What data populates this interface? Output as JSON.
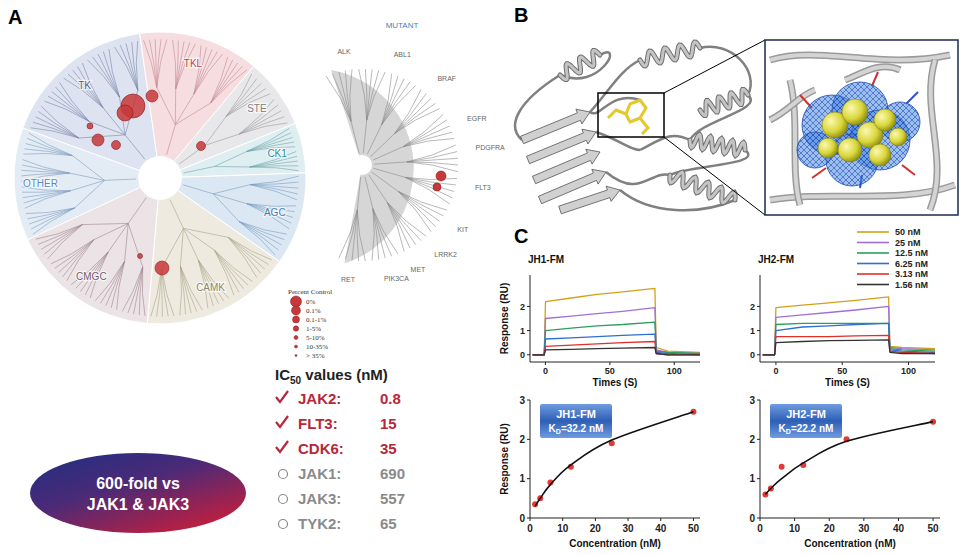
{
  "panels": {
    "a": {
      "letter": "A",
      "kinome_groups": [
        "TK",
        "TKL",
        "STE",
        "CK1",
        "AGC",
        "CAMK",
        "CMGC",
        "OTHER"
      ],
      "mutant_title": "MUTANT",
      "mutant_labels": [
        "ALK",
        "ABL1",
        "BRAF",
        "EGFR",
        "PDGFRA",
        "FLT3",
        "KIT",
        "LRRK2",
        "MET",
        "PIK3CA",
        "RET"
      ],
      "legend_title": "Percent Control",
      "legend_labels": [
        "0%",
        "0.1%",
        "0.1-1%",
        "1-5%",
        "5-10%",
        "10-35%",
        "> 35%"
      ],
      "ic50": {
        "title": "IC",
        "title_subscript": "50",
        "title_rest": " values (nM)",
        "separator": ":",
        "rows": [
          {
            "kinase": "JAK2",
            "value": 0.8,
            "selected": true
          },
          {
            "kinase": "FLT3",
            "value": 15,
            "selected": true
          },
          {
            "kinase": "CDK6",
            "value": 35,
            "selected": true
          },
          {
            "kinase": "JAK1",
            "value": 690,
            "selected": false
          },
          {
            "kinase": "JAK3",
            "value": 557,
            "selected": false
          },
          {
            "kinase": "TYK2",
            "value": 65,
            "selected": false
          }
        ]
      },
      "selectivity": [
        "600-fold vs",
        "JAK1 & JAK3"
      ]
    },
    "b": {
      "letter": "B"
    },
    "c": {
      "letter": "C"
    }
  },
  "chart_data": [
    {
      "type": "line",
      "title": "JH1-FM",
      "x_label": "Times (S)",
      "y_label": "Response (RU)",
      "x": [
        -10,
        -1,
        0,
        20,
        40,
        60,
        85,
        86,
        95,
        120
      ],
      "series": [
        {
          "color": "#d4a017",
          "values": [
            0,
            0,
            2.2,
            2.35,
            2.5,
            2.6,
            2.75,
            0.3,
            0.15,
            0.1
          ]
        },
        {
          "color": "#a070d8",
          "values": [
            0,
            0,
            1.5,
            1.6,
            1.7,
            1.8,
            1.95,
            0.2,
            0.1,
            0.05
          ]
        },
        {
          "color": "#2ca05a",
          "values": [
            0,
            0,
            1.0,
            1.1,
            1.2,
            1.25,
            1.35,
            0.15,
            0.1,
            0.05
          ]
        },
        {
          "color": "#2d6fd2",
          "values": [
            0,
            0,
            0.65,
            0.7,
            0.75,
            0.8,
            0.85,
            0.1,
            0.05,
            0
          ]
        },
        {
          "color": "#e0302a",
          "values": [
            0,
            0,
            0.35,
            0.4,
            0.45,
            0.5,
            0.55,
            0.05,
            0,
            0
          ]
        },
        {
          "color": "#333333",
          "values": [
            0,
            0,
            0.2,
            0.22,
            0.25,
            0.27,
            0.3,
            0.05,
            0,
            0
          ]
        }
      ],
      "xlim": [
        -12,
        120
      ],
      "xticks": [
        0,
        50,
        100
      ],
      "ylim": [
        -0.3,
        3.3
      ],
      "yticks": [
        0,
        1,
        2
      ]
    },
    {
      "type": "line",
      "title": "JH2-FM",
      "x_label": "Times (S)",
      "x": [
        -10,
        -1,
        0,
        20,
        40,
        60,
        85,
        86,
        95,
        120
      ],
      "series": [
        {
          "name": "50 nM",
          "color": "#d4a017",
          "values": [
            0,
            0,
            1.95,
            2.05,
            2.15,
            2.25,
            2.4,
            0.35,
            0.3,
            0.25
          ]
        },
        {
          "name": "25 nM",
          "color": "#a070d8",
          "values": [
            0,
            0,
            1.55,
            1.65,
            1.75,
            1.85,
            2.0,
            0.3,
            0.25,
            0.2
          ]
        },
        {
          "name": "12.5 nM",
          "color": "#2ca05a",
          "values": [
            0,
            0,
            1.25,
            1.3,
            1.3,
            1.3,
            1.3,
            0.25,
            0.2,
            0.15
          ]
        },
        {
          "name": "6.25 nM",
          "color": "#2d6fd2",
          "values": [
            0,
            0,
            1.0,
            1.15,
            1.2,
            1.25,
            1.3,
            0.2,
            0.15,
            0.1
          ]
        },
        {
          "name": "3.13 nM",
          "color": "#e0302a",
          "values": [
            0,
            0,
            0.75,
            0.75,
            0.75,
            0.78,
            0.8,
            0.15,
            0.1,
            0.05
          ]
        },
        {
          "name": "1.56 nM",
          "color": "#333333",
          "values": [
            0,
            0,
            0.5,
            0.55,
            0.58,
            0.6,
            0.62,
            0.1,
            0.05,
            0.05
          ]
        }
      ],
      "xlim": [
        -12,
        120
      ],
      "xticks": [
        0,
        50,
        100
      ],
      "ylim": [
        -0.3,
        3.3
      ],
      "yticks": [
        0,
        1,
        2
      ],
      "legend": "upper right"
    },
    {
      "type": "scatter",
      "title": "JH1-FM",
      "annotation": {
        "symbol": "K",
        "subscript": "D",
        "text": "=32.2 nM"
      },
      "x_label": "Concentration (nM)",
      "y_label": "Response (RU)",
      "x": [
        1.56,
        3.13,
        6.25,
        12.5,
        25,
        50
      ],
      "series": [
        {
          "type": "scatter",
          "color": "#e53935",
          "marker": "circle",
          "values": [
            0.35,
            0.5,
            0.9,
            1.3,
            1.9,
            2.7
          ]
        },
        {
          "type": "line",
          "color": "#111111",
          "values": [
            0.3,
            0.5,
            0.85,
            1.35,
            1.98,
            2.7
          ]
        }
      ],
      "xlim": [
        0,
        52
      ],
      "xticks": [
        0,
        10,
        20,
        30,
        40,
        50
      ],
      "ylim": [
        0,
        3
      ],
      "yticks": [
        0,
        1,
        2,
        3
      ]
    },
    {
      "type": "scatter",
      "title": "JH2-FM",
      "annotation": {
        "symbol": "K",
        "subscript": "D",
        "text": "=22.2 nM"
      },
      "x_label": "Concentration (nM)",
      "x": [
        1.56,
        3.13,
        6.25,
        12.5,
        25,
        50
      ],
      "series": [
        {
          "type": "scatter",
          "color": "#e53935",
          "marker": "circle",
          "values": [
            0.6,
            0.75,
            1.3,
            1.35,
            2.0,
            2.45
          ]
        },
        {
          "type": "line",
          "color": "#111111",
          "values": [
            0.6,
            0.75,
            1.0,
            1.4,
            1.95,
            2.45
          ]
        }
      ],
      "xlim": [
        0,
        52
      ],
      "xticks": [
        0,
        10,
        20,
        30,
        40,
        50
      ],
      "ylim": [
        0,
        3
      ],
      "yticks": [
        0,
        1,
        2,
        3
      ]
    }
  ]
}
